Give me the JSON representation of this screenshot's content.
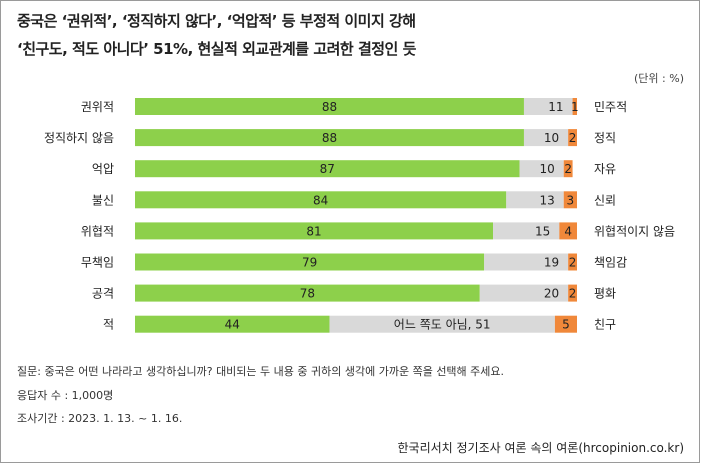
{
  "title_line1": "중국은 ‘권위적’, ‘정직하지 않다’, ‘억압적’ 등 부정적 이미지 강해",
  "title_line2": "‘친구도, 적도 아니다’ 51%, 현실적 외교관계를 고려한 결정인 듯",
  "unit": "(단위 : %)",
  "notes": {
    "question": "질문: 중국은 어떤 나라라고 생각하십니까? 대비되는 두 내용 중 귀하의 생각에 가까운 쪽을 선택해 주세요.",
    "sample": "응답자 수 : 1,000명",
    "period": "조사기간 : 2023. 1. 13. ~ 1. 16."
  },
  "source": "한국리서치 정기조사 여론 속의 여론(hrcopinion.co.kr)",
  "colors": {
    "negative": "#8dd04b",
    "neutral": "#d9d9d9",
    "positive": "#f0883a"
  },
  "chart_data": {
    "type": "bar",
    "stacked": true,
    "orientation": "horizontal",
    "xlim": [
      0,
      100
    ],
    "categories_left": [
      "권위적",
      "정직하지 않음",
      "억압",
      "불신",
      "위협적",
      "무책임",
      "공격",
      "적"
    ],
    "categories_right": [
      "민주적",
      "정직",
      "자유",
      "신뢰",
      "위협적이지 않음",
      "책임감",
      "평화",
      "친구"
    ],
    "series": [
      {
        "values": [
          88,
          88,
          87,
          84,
          81,
          79,
          78,
          44
        ],
        "color": "#8dd04b"
      },
      {
        "values": [
          11,
          10,
          10,
          13,
          15,
          19,
          20,
          51
        ],
        "color": "#d9d9d9"
      },
      {
        "values": [
          1,
          2,
          2,
          3,
          4,
          2,
          2,
          5
        ],
        "color": "#f0883a"
      }
    ],
    "data_labels": [
      [
        "88",
        "11",
        "1"
      ],
      [
        "88",
        "10",
        "2"
      ],
      [
        "87",
        "10",
        "2"
      ],
      [
        "84",
        "13",
        "3"
      ],
      [
        "81",
        "15",
        "4"
      ],
      [
        "79",
        "19",
        "2"
      ],
      [
        "78",
        "20",
        "2"
      ],
      [
        "44",
        "어느 쪽도 아님, 51",
        "5"
      ]
    ]
  }
}
